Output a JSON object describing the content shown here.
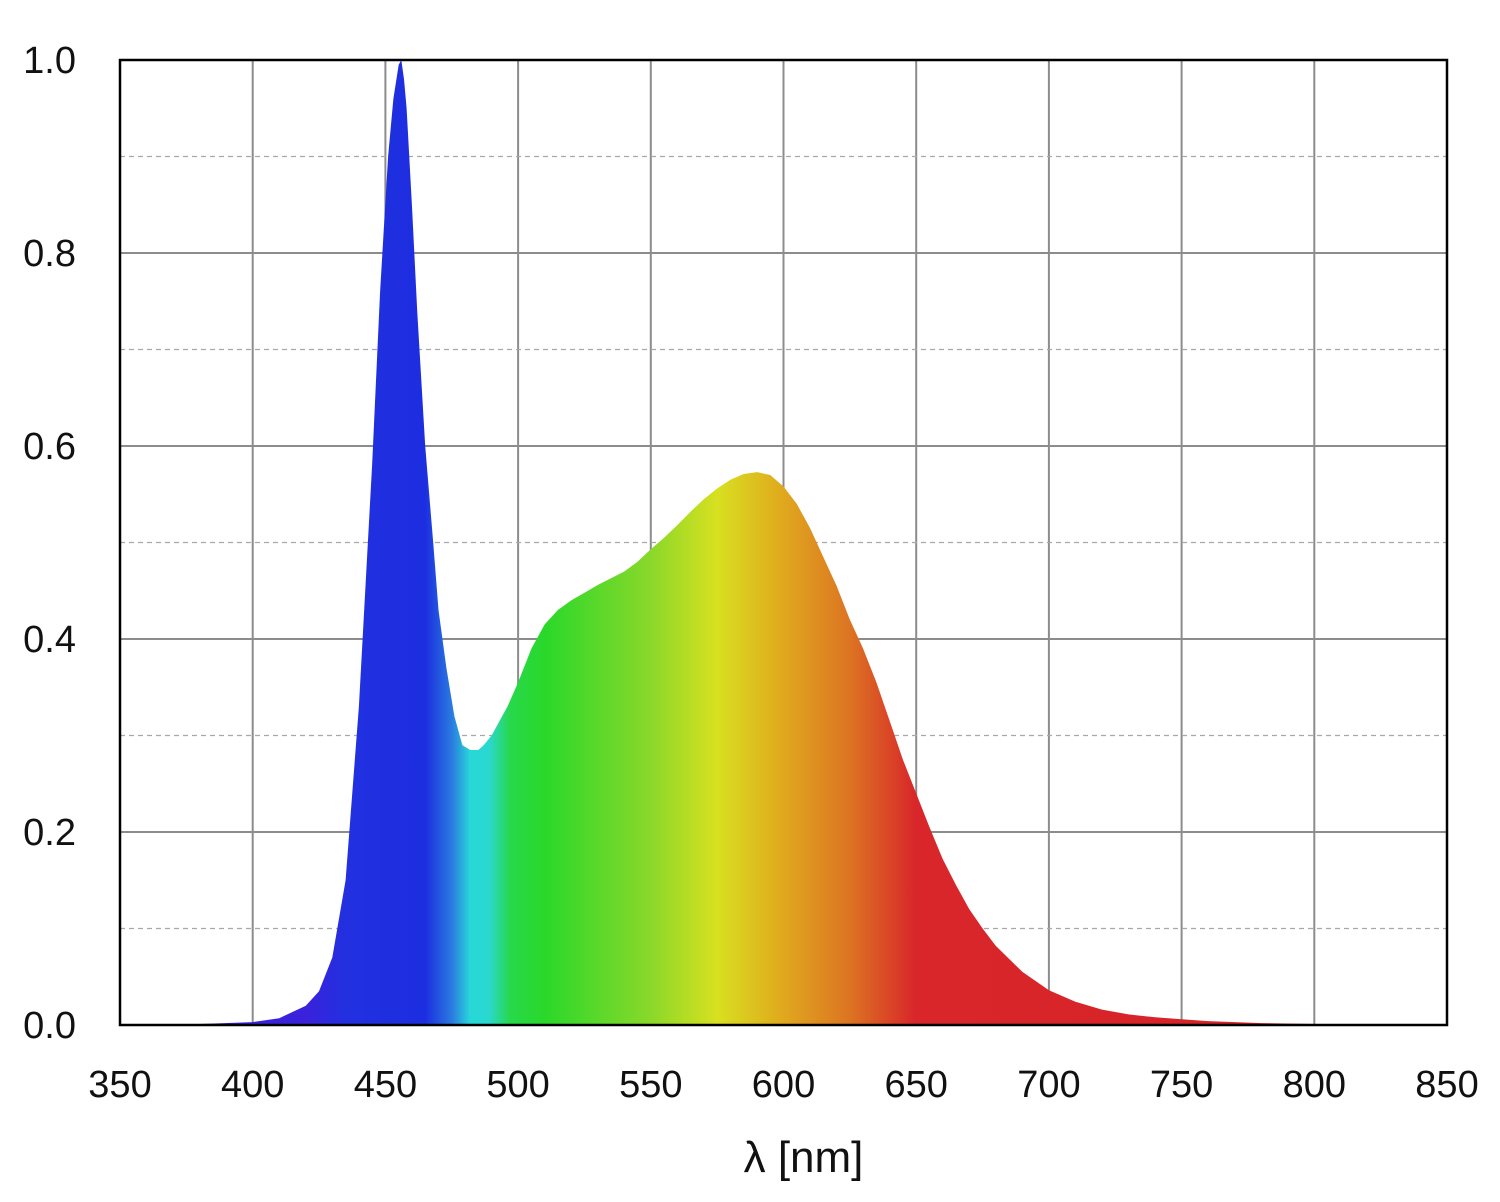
{
  "chart_data": {
    "type": "area",
    "title": "",
    "xlabel": "λ [nm]",
    "ylabel": "",
    "xlim": [
      350,
      850
    ],
    "ylim": [
      0,
      1.0
    ],
    "x_ticks": [
      350,
      400,
      450,
      500,
      550,
      600,
      650,
      700,
      750,
      800,
      850
    ],
    "x_tick_labels": [
      "350",
      "400",
      "450",
      "500",
      "550",
      "600",
      "650",
      "700",
      "750",
      "800",
      "850"
    ],
    "y_ticks": [
      0,
      0.2,
      0.4,
      0.6,
      0.8,
      1.0
    ],
    "y_tick_labels": [
      "0.0",
      "0.2",
      "0.4",
      "0.6",
      "0.8",
      "1.0"
    ],
    "y_minor_ticks": [
      0.1,
      0.3,
      0.5,
      0.7,
      0.9
    ],
    "grid": {
      "major": "solid",
      "minor_y": "dashed"
    },
    "fill": "spectral-gradient",
    "series": [
      {
        "x": [
          360,
          380,
          400,
          410,
          420,
          425,
          430,
          435,
          440,
          445,
          448,
          451,
          453,
          455,
          456,
          457,
          458,
          460,
          462,
          465,
          468,
          470,
          473,
          476,
          479,
          482,
          485,
          487,
          490,
          493,
          496,
          500,
          505,
          510,
          515,
          520,
          525,
          530,
          535,
          540,
          545,
          550,
          555,
          560,
          565,
          570,
          575,
          580,
          585,
          590,
          595,
          600,
          605,
          610,
          615,
          620,
          625,
          630,
          635,
          640,
          645,
          650,
          655,
          660,
          665,
          670,
          675,
          680,
          690,
          700,
          710,
          720,
          730,
          740,
          750,
          760,
          780,
          800,
          820,
          830
        ],
        "y": [
          0.0,
          0.001,
          0.003,
          0.007,
          0.02,
          0.035,
          0.07,
          0.15,
          0.33,
          0.58,
          0.76,
          0.9,
          0.96,
          0.995,
          1.0,
          0.98,
          0.95,
          0.85,
          0.74,
          0.6,
          0.5,
          0.43,
          0.37,
          0.32,
          0.29,
          0.285,
          0.285,
          0.29,
          0.3,
          0.315,
          0.33,
          0.355,
          0.39,
          0.415,
          0.43,
          0.44,
          0.448,
          0.456,
          0.463,
          0.47,
          0.48,
          0.493,
          0.505,
          0.518,
          0.532,
          0.545,
          0.556,
          0.565,
          0.571,
          0.573,
          0.57,
          0.558,
          0.54,
          0.515,
          0.485,
          0.455,
          0.42,
          0.39,
          0.355,
          0.315,
          0.275,
          0.24,
          0.205,
          0.172,
          0.145,
          0.12,
          0.1,
          0.082,
          0.055,
          0.036,
          0.024,
          0.016,
          0.011,
          0.008,
          0.006,
          0.004,
          0.002,
          0.001,
          0.0005,
          0.0
        ]
      }
    ],
    "gradient_stops": [
      {
        "nm": 420,
        "color": "#3a22dc"
      },
      {
        "nm": 435,
        "color": "#2230e0"
      },
      {
        "nm": 465,
        "color": "#1c2ee0"
      },
      {
        "nm": 475,
        "color": "#2a7ae0"
      },
      {
        "nm": 482,
        "color": "#28d8d8"
      },
      {
        "nm": 489,
        "color": "#2ad8d0"
      },
      {
        "nm": 497,
        "color": "#28d84a"
      },
      {
        "nm": 510,
        "color": "#2ad82a"
      },
      {
        "nm": 550,
        "color": "#8ad82a"
      },
      {
        "nm": 575,
        "color": "#d8e020"
      },
      {
        "nm": 600,
        "color": "#e0a81e"
      },
      {
        "nm": 625,
        "color": "#dc7422"
      },
      {
        "nm": 650,
        "color": "#d8262a"
      },
      {
        "nm": 830,
        "color": "#d42226"
      }
    ],
    "colors": {
      "grid": "#8c8c8c",
      "axes": "#000000"
    }
  }
}
